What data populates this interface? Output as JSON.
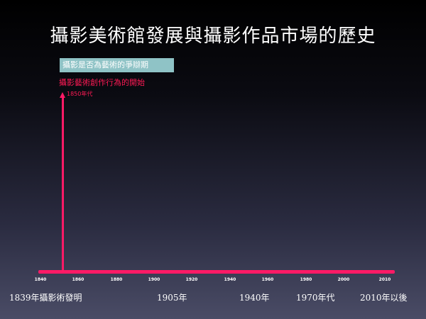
{
  "title": "攝影美術館發展與攝影作品市場的歷史",
  "debate_box": "攝影是否為藝術的爭辯期",
  "art_start_label": "攝影藝術創作行為的開始",
  "art_start_date": "1850年代",
  "ticks": [
    "1840",
    "1860",
    "1880",
    "1900",
    "1920",
    "1940",
    "1960",
    "1980",
    "2000",
    "2010"
  ],
  "bottom_labels": [
    "1839年攝影術發明",
    "1905年",
    "1940年",
    "1970年代",
    "2010年以後"
  ],
  "colors": {
    "accent": "#ff1a66",
    "box": "#8fc3c6"
  }
}
